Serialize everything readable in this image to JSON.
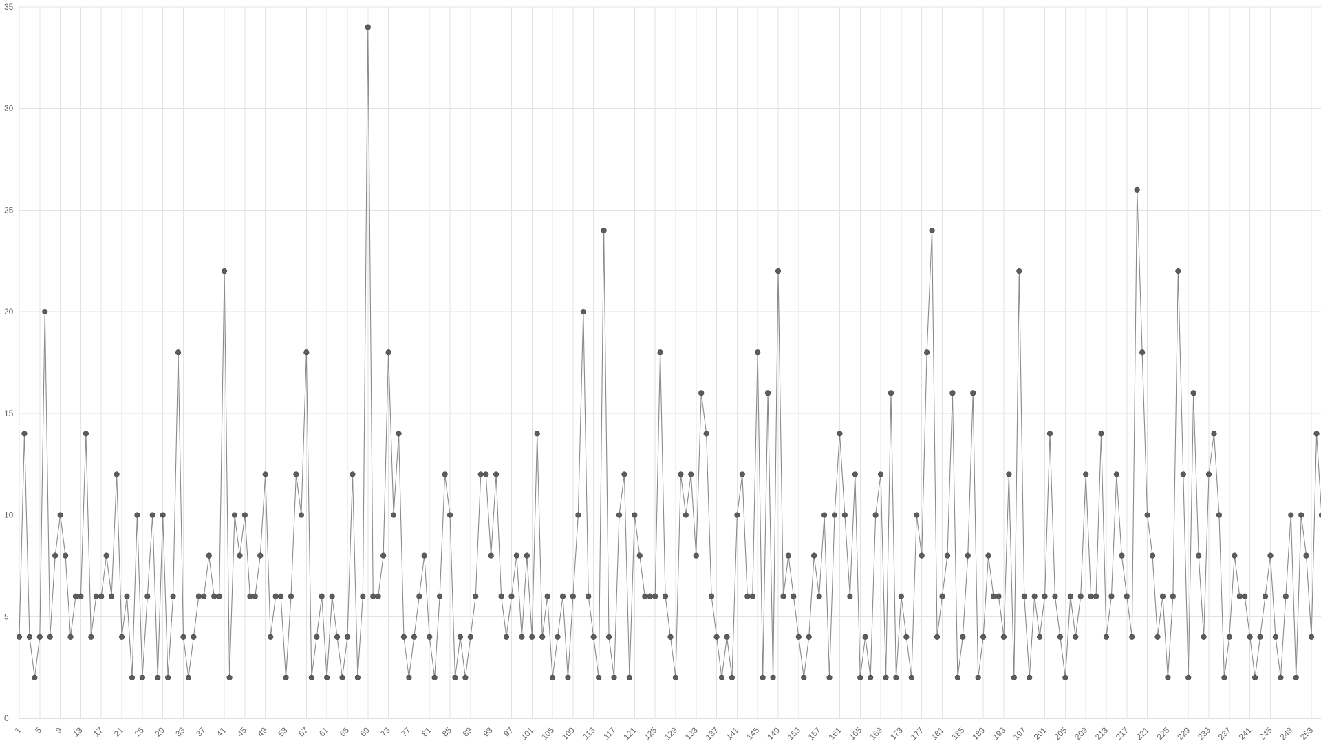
{
  "chart_data": {
    "type": "line",
    "title": "",
    "xlabel": "",
    "ylabel": "",
    "x_start": 1,
    "x_label_every": 4,
    "ylim": [
      0,
      35
    ],
    "yticks": [
      0,
      5,
      10,
      15,
      20,
      25,
      30,
      35
    ],
    "grid": true,
    "legend": "none",
    "colors": {
      "line": "#8a8a8a",
      "point": "#5c5c5c",
      "grid": "#e3e3e3"
    },
    "series": [
      {
        "values": [
          4,
          14,
          4,
          2,
          4,
          20,
          4,
          8,
          10,
          8,
          4,
          6,
          6,
          14,
          4,
          6,
          6,
          8,
          6,
          12,
          4,
          6,
          2,
          10,
          2,
          6,
          10,
          2,
          10,
          2,
          6,
          18,
          4,
          2,
          4,
          6,
          6,
          8,
          6,
          6,
          22,
          2,
          10,
          8,
          10,
          6,
          6,
          8,
          12,
          4,
          6,
          6,
          2,
          6,
          12,
          10,
          18,
          2,
          4,
          6,
          2,
          6,
          4,
          2,
          4,
          12,
          2,
          6,
          34,
          6,
          6,
          8,
          18,
          10,
          14,
          4,
          2,
          4,
          6,
          8,
          4,
          2,
          6,
          12,
          10,
          2,
          4,
          2,
          4,
          6,
          12,
          12,
          8,
          12,
          6,
          4,
          6,
          8,
          4,
          8,
          4,
          14,
          4,
          6,
          2,
          4,
          6,
          2,
          6,
          10,
          20,
          6,
          4,
          2,
          24,
          4,
          2,
          10,
          12,
          2,
          10,
          8,
          6,
          6,
          6,
          18,
          6,
          4,
          2,
          12,
          10,
          12,
          8,
          16,
          14,
          6,
          4,
          2,
          4,
          2,
          10,
          12,
          6,
          6,
          18,
          2,
          16,
          2,
          22,
          6,
          8,
          6,
          4,
          2,
          4,
          8,
          6,
          10,
          2,
          10,
          14,
          10,
          6,
          12,
          2,
          4,
          2,
          10,
          12,
          2,
          16,
          2,
          6,
          4,
          2,
          10,
          8,
          18,
          24,
          4,
          6,
          8,
          16,
          2,
          4,
          8,
          16,
          2,
          4,
          8,
          6,
          6,
          4,
          12,
          2,
          22,
          6,
          2,
          6,
          4,
          6,
          14,
          6,
          4,
          2,
          6,
          4,
          6,
          12,
          6,
          6,
          14,
          4,
          6,
          12,
          8,
          6,
          4,
          26,
          18,
          10,
          8,
          4,
          6,
          2,
          6,
          22,
          12,
          2,
          16,
          8,
          4,
          12,
          14,
          10,
          2,
          4,
          8,
          6,
          6,
          4,
          2,
          4,
          6,
          8,
          4,
          2,
          6,
          10,
          2,
          10,
          8,
          4,
          14,
          10
        ]
      }
    ]
  }
}
